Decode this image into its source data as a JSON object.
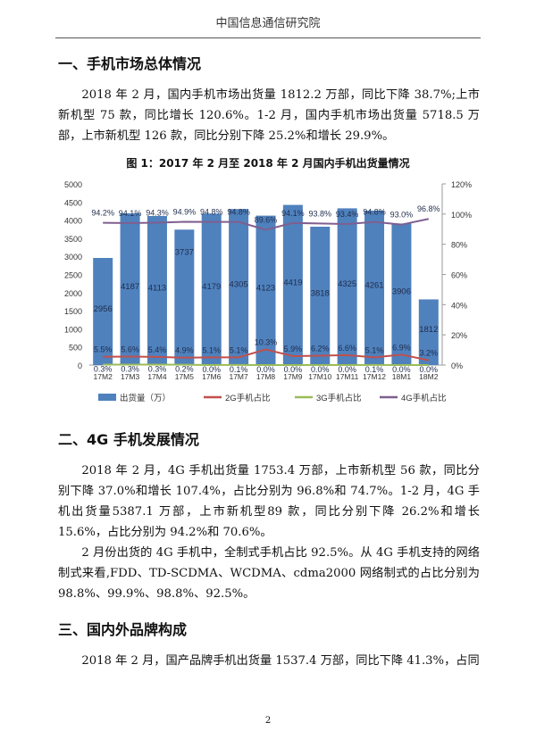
{
  "header": {
    "org": "中国信息通信研究院"
  },
  "sections": [
    {
      "title": "一、手机市场总体情况",
      "paragraphs": [
        "2018 年 2 月，国内手机市场出货量 1812.2 万部，同比下降 38.7%;上市新机型 75 款，同比增长 120.6%。1-2 月，国内手机市场出货量 5718.5 万部，上市新机型 126 款，同比分别下降 25.2%和增长 29.9%。"
      ]
    },
    {
      "title": "二、4G 手机发展情况",
      "paragraphs": [
        "2018 年 2 月，4G 手机出货量 1753.4 万部，上市新机型 56 款，同比分别下降 37.0%和增长 107.4%，占比分别为 96.8%和 74.7%。1-2 月，4G 手机出货量5387.1 万部，上市新机型89 款，同比分别下降 26.2%和增长 15.6%，占比分别为 94.2%和 70.6%。",
        "2 月份出货的 4G 手机中，全制式手机占比 92.5%。从 4G 手机支持的网络制式来看,FDD、TD-SCDMA、WCDMA、cdma2000 网络制式的占比分别为 98.8%、99.9%、98.8%、92.5%。"
      ]
    },
    {
      "title": "三、国内外品牌构成",
      "paragraphs": [
        "2018 年 2 月，国产品牌手机出货量 1537.4 万部，同比下降 41.3%，占同"
      ]
    }
  ],
  "page_number": "2",
  "chart_data": {
    "type": "bar",
    "title": "图 1：2017 年 2 月至 2018 年 2 月国内手机出货量情况",
    "categories": [
      "17M2",
      "17M3",
      "17M4",
      "17M5",
      "17M6",
      "17M7",
      "17M8",
      "17M9",
      "17M10",
      "17M11",
      "17M12",
      "18M1",
      "18M2"
    ],
    "y_left": {
      "ylim": [
        0,
        5000
      ],
      "ticks": [
        "0",
        "500",
        "1000",
        "1500",
        "2000",
        "2500",
        "3000",
        "3500",
        "4000",
        "4500",
        "5000"
      ]
    },
    "y_right": {
      "ylim": [
        0,
        120
      ],
      "ticks": [
        "0%",
        "20%",
        "40%",
        "60%",
        "80%",
        "100%",
        "120%"
      ]
    },
    "legend_position": "bottom",
    "series": [
      {
        "name": "出货量（万）",
        "type": "bar",
        "axis": "left",
        "color": "#4f81bd",
        "values": [
          2956,
          4187,
          4113,
          3737,
          4179,
          4305,
          4123,
          4419,
          3818,
          4325,
          4261,
          3906,
          1812
        ],
        "labels": [
          "2956",
          "4187",
          "4113",
          "3737",
          "4179",
          "4305",
          "4123",
          "4419",
          "3818",
          "4325",
          "4261",
          "3906",
          "1812"
        ]
      },
      {
        "name": "2G手机占比",
        "type": "line",
        "axis": "right",
        "color": "#c0504d",
        "values": [
          5.5,
          5.6,
          5.4,
          4.9,
          5.1,
          5.1,
          10.3,
          5.9,
          6.2,
          6.6,
          5.1,
          6.9,
          3.2
        ],
        "labels": [
          "5.5%",
          "5.6%",
          "5.4%",
          "4.9%",
          "5.1%",
          "5.1%",
          "10.3%",
          "5.9%",
          "6.2%",
          "6.6%",
          "5.1%",
          "6.9%",
          "3.2%"
        ]
      },
      {
        "name": "3G手机占比",
        "type": "line",
        "axis": "right",
        "color": "#9bbb59",
        "values": [
          0.3,
          0.3,
          0.3,
          0.2,
          0.0,
          0.1,
          0.0,
          0.0,
          0.0,
          0.0,
          0.1,
          0.0,
          0.0
        ],
        "labels": [
          "0.3%",
          "0.3%",
          "0.3%",
          "0.2%",
          "0.0%",
          "0.1%",
          "0.0%",
          "0.0%",
          "0.0%",
          "0.0%",
          "0.1%",
          "0.0%",
          "0.0%"
        ]
      },
      {
        "name": "4G手机占比",
        "type": "line",
        "axis": "right",
        "color": "#7f5f8f",
        "values": [
          94.2,
          94.1,
          94.3,
          94.9,
          94.8,
          94.8,
          89.6,
          94.1,
          93.8,
          93.4,
          94.8,
          93.0,
          96.8
        ],
        "labels": [
          "94.2%",
          "94.1%",
          "94.3%",
          "94.9%",
          "94.8%",
          "94.8%",
          "89.6%",
          "94.1%",
          "93.8%",
          "93.4%",
          "94.8%",
          "93.0%",
          "96.8%"
        ]
      }
    ]
  }
}
